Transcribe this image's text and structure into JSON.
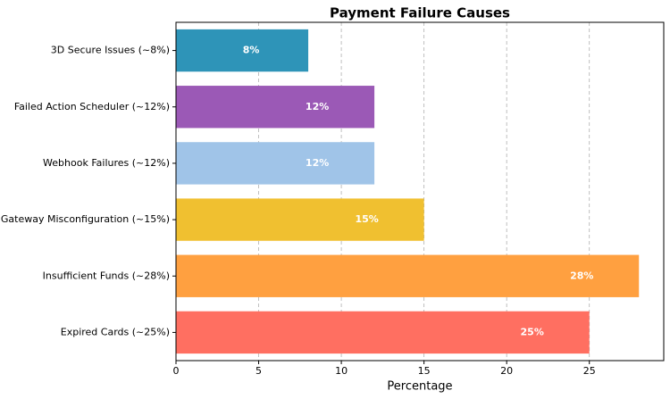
{
  "chart_data": {
    "type": "barh",
    "title": "Payment Failure Causes",
    "x_label": "Percentage",
    "categories": [
      "Expired Cards (~25%)",
      "Insufficient Funds (~28%)",
      "Gateway Misconfiguration (~15%)",
      "Webhook Failures (~12%)",
      "Failed Action Scheduler (~12%)",
      "3D Secure Issues (~8%)"
    ],
    "values": [
      25,
      28,
      15,
      12,
      12,
      8
    ],
    "value_labels": [
      "25%",
      "28%",
      "15%",
      "12%",
      "12%",
      "8%"
    ],
    "colors": [
      "#ff6f61",
      "#ffa040",
      "#f0c030",
      "#a0c4e8",
      "#9b59b6",
      "#2e94b8"
    ],
    "xlim": [
      0,
      29.5
    ],
    "xticks": [
      0,
      5,
      10,
      15,
      20,
      25
    ],
    "grid": true
  }
}
